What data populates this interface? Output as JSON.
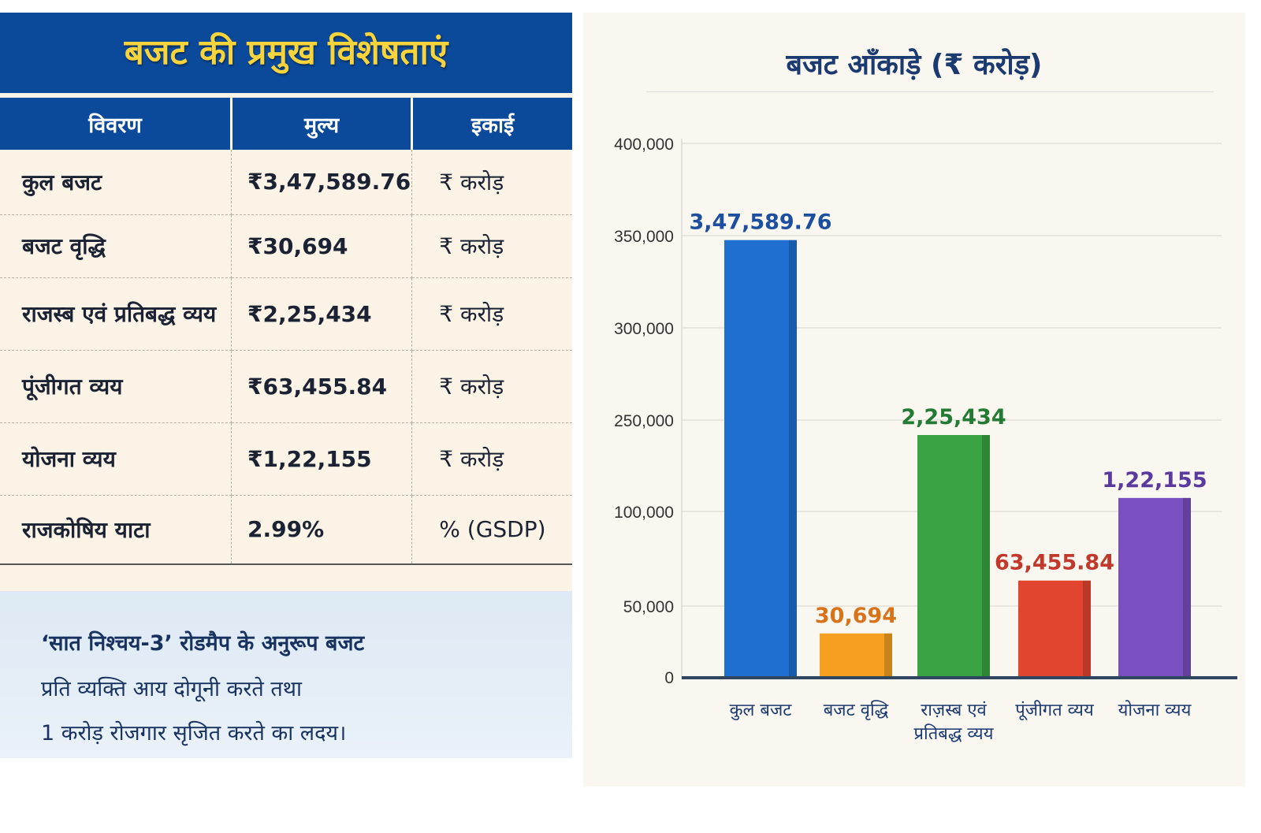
{
  "left": {
    "title": "बजट की प्रमुख विशेषताएं",
    "table": {
      "headers": [
        "विवरण",
        "मुल्य",
        "इकाई"
      ],
      "rows": [
        [
          "कुल बजट",
          "₹3,47,589.76",
          "₹ करोड़"
        ],
        [
          "बजट वृद्धि",
          "₹30,694",
          "₹ करोड़"
        ],
        [
          "राजस्ब एवं प्रतिबद्ध व्यय",
          "₹2,25,434",
          "₹ करोड़"
        ],
        [
          "पूंजीगत व्यय",
          "₹63,455.84",
          "₹ करोड़"
        ],
        [
          "योजना व्यय",
          "₹1,22,155",
          "₹ करोड़"
        ],
        [
          "राजकोषिय याटा",
          "2.99%",
          "% (GSDP)"
        ]
      ]
    },
    "note": {
      "lines": [
        "‘सात निश्चय-3’ रोडमैप के अनुरूप बजट",
        "प्रति व्यक्ति आय दोगूनी करते तथा",
        "1 करोड़ रोजगार सृजित करते का लदय।"
      ]
    }
  },
  "chart_data": {
    "type": "bar",
    "title": "बजट आँकाड़े (₹ करोड़)",
    "categories": [
      "कुल बजट",
      "बजट वृद्धि",
      "राज़स्ब एवं प्रतिबद्ध व्यय",
      "पूंजीगत व्यय",
      "योजना व्यय"
    ],
    "values": [
      347589.76,
      30694,
      225434,
      63455.84,
      122155
    ],
    "value_labels": [
      "3,47,589.76",
      "30,694",
      "2,25,434",
      "63,455.84",
      "1,22,155"
    ],
    "y_ticks": [
      0,
      50000,
      100000,
      250000,
      300000,
      350000,
      400000
    ],
    "y_tick_labels": [
      "0",
      "50,000",
      "100,000",
      "250,000",
      "300,000",
      "350,000",
      "400,000"
    ],
    "ylim": [
      0,
      400000
    ],
    "grid": true,
    "bar_colors": [
      "#1f6fd1",
      "#f5a020",
      "#3aa343",
      "#e2452f",
      "#7a4fc0"
    ],
    "label_colors": [
      "#1c4fa0",
      "#d9731a",
      "#237a33",
      "#c0392b",
      "#5b3a9e"
    ]
  }
}
